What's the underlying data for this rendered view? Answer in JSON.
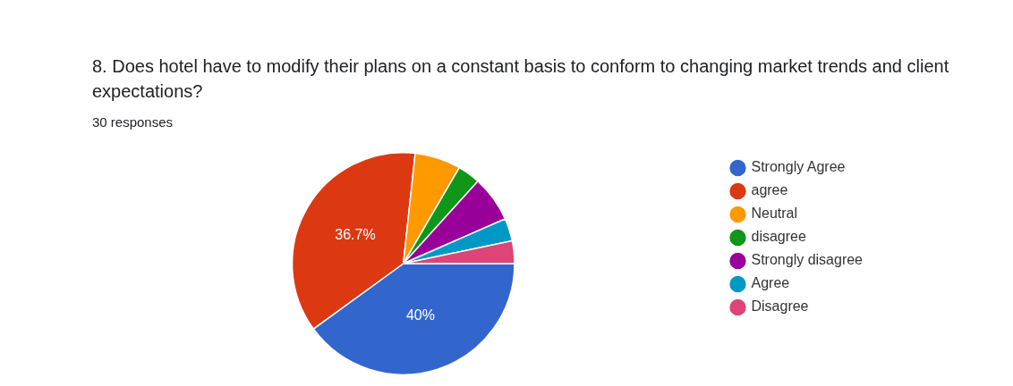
{
  "chart_data": {
    "type": "pie",
    "title": "8. Does hotel have to modify their plans on a constant basis to conform to changing market trends and client expectations?",
    "subtitle": "30 responses",
    "categories": [
      "Strongly Agree",
      "agree",
      "Neutral",
      "disagree",
      "Strongly disagree",
      "Agree",
      "Disagree"
    ],
    "values": [
      40,
      36.7,
      6.7,
      3.3,
      6.7,
      3.3,
      3.3
    ],
    "colors": [
      "#3366cc",
      "#dc3912",
      "#ff9900",
      "#109618",
      "#990099",
      "#0099c6",
      "#dd4477"
    ],
    "value_labels": [
      "40%",
      "36.7%",
      null,
      null,
      null,
      null,
      null
    ],
    "legend": "right"
  }
}
